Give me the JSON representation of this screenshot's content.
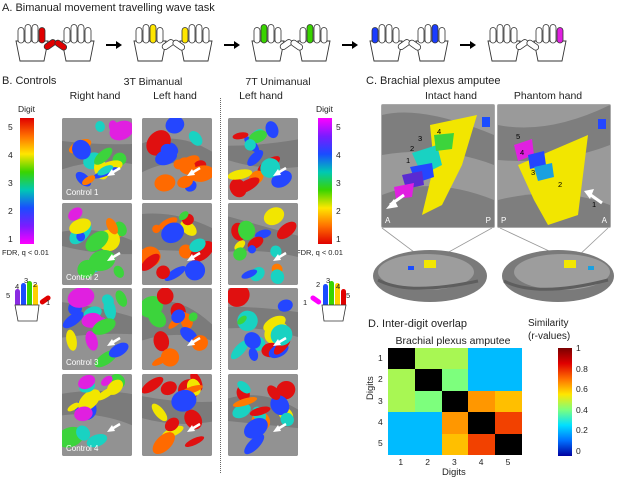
{
  "panel_a": {
    "title": "A. Bimanual movement travelling wave task"
  },
  "panel_b": {
    "title": "B. Controls",
    "group_3t": "3T Bimanual",
    "group_7t": "7T Unimanual",
    "col_right": "Right hand",
    "col_left": "Left hand",
    "col_left_7t": "Left hand",
    "scale_label": "Digit",
    "scale_ticks": [
      "5",
      "4",
      "3",
      "2",
      "1"
    ],
    "scale_label_2": "Digit",
    "scale_ticks_2": [
      "5",
      "4",
      "3",
      "2",
      "1"
    ],
    "fdr": "FDR, q < 0.01",
    "fdr_2": "FDR, q < 0.01",
    "controls": [
      "Control 1",
      "Control 2",
      "Control 3",
      "Control 4"
    ],
    "hand_digits_left": [
      "5",
      "4",
      "3",
      "2",
      "1"
    ],
    "hand_digits_right": [
      "1",
      "2",
      "3",
      "4",
      "5"
    ]
  },
  "panel_c": {
    "title": "C. Brachial plexus amputee",
    "intact": "Intact hand",
    "phantom": "Phantom hand",
    "intact_digits": [
      "1",
      "2",
      "3",
      "4"
    ],
    "phantom_digits": [
      "5",
      "4",
      "3",
      "2",
      "1"
    ],
    "a1": "A",
    "p1": "P",
    "p2": "P",
    "a2": "A"
  },
  "panel_d": {
    "title": "D. Inter-digit overlap",
    "subtitle": "Brachial plexus amputee",
    "colorbar_title": "Similarity",
    "colorbar_sub": "(r-values)",
    "colorbar_ticks": [
      "1",
      "0.8",
      "0.6",
      "0.4",
      "0.2",
      "0"
    ],
    "ylabel": "Digits",
    "xlabel": "Digits",
    "row_labels": [
      "1",
      "2",
      "3",
      "4",
      "5"
    ],
    "col_labels": [
      "1",
      "2",
      "3",
      "4",
      "5"
    ]
  },
  "chart_data": {
    "type": "heatmap",
    "title": "Brachial plexus amputee",
    "xlabel": "Digits",
    "ylabel": "Digits",
    "x": [
      "1",
      "2",
      "3",
      "4",
      "5"
    ],
    "y": [
      "1",
      "2",
      "3",
      "4",
      "5"
    ],
    "values": [
      [
        1.0,
        0.55,
        0.55,
        0.3,
        0.3
      ],
      [
        0.55,
        1.0,
        0.5,
        0.3,
        0.3
      ],
      [
        0.55,
        0.5,
        1.0,
        0.75,
        0.7
      ],
      [
        0.3,
        0.3,
        0.75,
        1.0,
        0.85
      ],
      [
        0.3,
        0.3,
        0.7,
        0.85,
        1.0
      ]
    ],
    "zlim": [
      0,
      1
    ],
    "colorbar": "Similarity (r-values)"
  }
}
